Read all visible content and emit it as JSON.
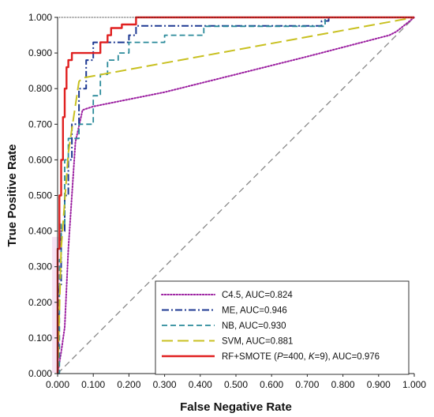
{
  "chart_data": {
    "type": "line",
    "xlabel": "False Negative Rate",
    "ylabel": "True Positive Rate",
    "xlim": [
      0,
      1
    ],
    "ylim": [
      0,
      1
    ],
    "x_ticks": [
      "0.000",
      "0.100",
      "0.200",
      "0.300",
      "0.400",
      "0.500",
      "0.600",
      "0.700",
      "0.800",
      "0.900",
      "1.000"
    ],
    "y_ticks": [
      "0.000",
      "0.100",
      "0.200",
      "0.300",
      "0.400",
      "0.500",
      "0.600",
      "0.700",
      "0.800",
      "0.900",
      "1.000"
    ],
    "legend_position": "bottom-right",
    "series": [
      {
        "name": "C4.5, AUC=0.824",
        "color": "#9b1fa0",
        "style": "dotted",
        "x": [
          0,
          0.01,
          0.02,
          0.03,
          0.05,
          0.07,
          0.1,
          0.3,
          0.5,
          0.7,
          0.93,
          0.95,
          1.0
        ],
        "y": [
          0,
          0.06,
          0.13,
          0.35,
          0.65,
          0.74,
          0.75,
          0.79,
          0.84,
          0.89,
          0.95,
          0.96,
          1.0
        ]
      },
      {
        "name": "ME, AUC=0.946",
        "color": "#1f3a93",
        "style": "dashdot",
        "x": [
          0,
          0.005,
          0.01,
          0.01,
          0.02,
          0.02,
          0.03,
          0.03,
          0.04,
          0.04,
          0.06,
          0.06,
          0.08,
          0.08,
          0.1,
          0.1,
          0.2,
          0.2,
          0.22,
          0.22,
          0.74,
          0.74,
          0.76,
          0.76,
          1.0
        ],
        "y": [
          0,
          0.25,
          0.25,
          0.4,
          0.4,
          0.5,
          0.5,
          0.6,
          0.6,
          0.7,
          0.7,
          0.8,
          0.8,
          0.88,
          0.88,
          0.93,
          0.93,
          0.95,
          0.95,
          0.976,
          0.976,
          0.99,
          0.99,
          1.0,
          1.0
        ]
      },
      {
        "name": "NB, AUC=0.930",
        "color": "#2a8a9a",
        "style": "dashed",
        "x": [
          0,
          0.005,
          0.005,
          0.01,
          0.01,
          0.02,
          0.02,
          0.03,
          0.03,
          0.06,
          0.06,
          0.1,
          0.1,
          0.12,
          0.12,
          0.14,
          0.14,
          0.17,
          0.17,
          0.2,
          0.2,
          0.3,
          0.3,
          0.41,
          0.41,
          0.75,
          0.75,
          1.0
        ],
        "y": [
          0,
          0,
          0.32,
          0.32,
          0.42,
          0.42,
          0.6,
          0.6,
          0.66,
          0.66,
          0.7,
          0.7,
          0.78,
          0.78,
          0.84,
          0.84,
          0.88,
          0.88,
          0.9,
          0.9,
          0.93,
          0.93,
          0.95,
          0.95,
          0.975,
          0.975,
          1.0,
          1.0
        ]
      },
      {
        "name": "SVM, AUC=0.881",
        "color": "#c8c020",
        "style": "longdash",
        "x": [
          0,
          0.01,
          0.03,
          0.06,
          0.07,
          1.0
        ],
        "y": [
          0,
          0.35,
          0.62,
          0.82,
          0.83,
          1.0
        ]
      },
      {
        "name": "RF+SMOTE (P=400, K=9), AUC=0.976",
        "color": "#e02020",
        "style": "solid",
        "x": [
          0,
          0,
          0.005,
          0.005,
          0.01,
          0.01,
          0.015,
          0.015,
          0.02,
          0.02,
          0.025,
          0.025,
          0.03,
          0.03,
          0.04,
          0.04,
          0.07,
          0.07,
          0.12,
          0.12,
          0.14,
          0.14,
          0.15,
          0.15,
          0.18,
          0.18,
          0.22,
          0.22,
          1.0
        ],
        "y": [
          0,
          0.35,
          0.35,
          0.5,
          0.5,
          0.6,
          0.6,
          0.72,
          0.72,
          0.8,
          0.8,
          0.86,
          0.86,
          0.88,
          0.88,
          0.9,
          0.9,
          0.9,
          0.9,
          0.93,
          0.93,
          0.95,
          0.95,
          0.97,
          0.97,
          0.98,
          0.98,
          1.0,
          1.0
        ]
      },
      {
        "name": "",
        "color": "#888888",
        "style": "diagonal",
        "x": [
          0,
          1
        ],
        "y": [
          0,
          1
        ]
      }
    ],
    "legend": [
      {
        "label": "C4.5, AUC=0.824",
        "series": 0
      },
      {
        "label": "ME, AUC=0.946",
        "series": 1
      },
      {
        "label": "NB, AUC=0.930",
        "series": 2
      },
      {
        "label": "SVM, AUC=0.881",
        "series": 3
      },
      {
        "label_parts": [
          "RF+SMOTE (",
          "P",
          "=400, ",
          "K",
          "=9), AUC=0.976"
        ],
        "series": 4
      }
    ]
  }
}
